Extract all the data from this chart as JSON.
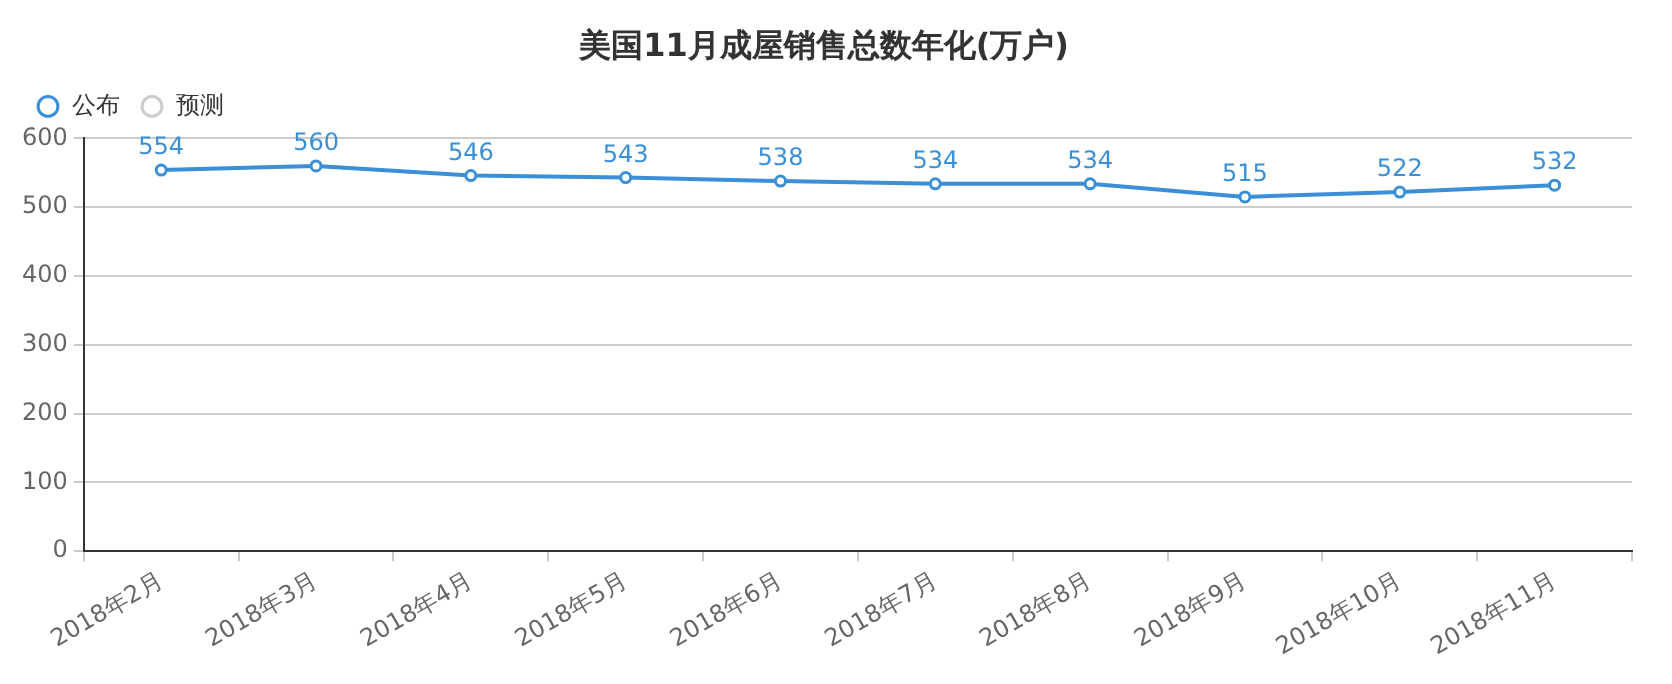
{
  "chart_data": {
    "type": "line",
    "title": "美国11月成屋销售总数年化(万户)",
    "categories": [
      "2018年2月",
      "2018年3月",
      "2018年4月",
      "2018年5月",
      "2018年6月",
      "2018年7月",
      "2018年8月",
      "2018年9月",
      "2018年10月",
      "2018年11月"
    ],
    "series": [
      {
        "name": "公布",
        "color": "#3a8fd6",
        "values": [
          554,
          560,
          546,
          543,
          538,
          534,
          534,
          515,
          522,
          532
        ]
      },
      {
        "name": "预测",
        "color": "#cccccc",
        "values": [
          null,
          null,
          null,
          null,
          null,
          null,
          null,
          null,
          null,
          null
        ]
      }
    ],
    "ylim": [
      0,
      600
    ],
    "yticks": [
      0,
      100,
      200,
      300,
      400,
      500,
      600
    ],
    "grid": "y",
    "legend": "top left",
    "marker": "circle",
    "line_style": "solid",
    "data_labels": true
  }
}
